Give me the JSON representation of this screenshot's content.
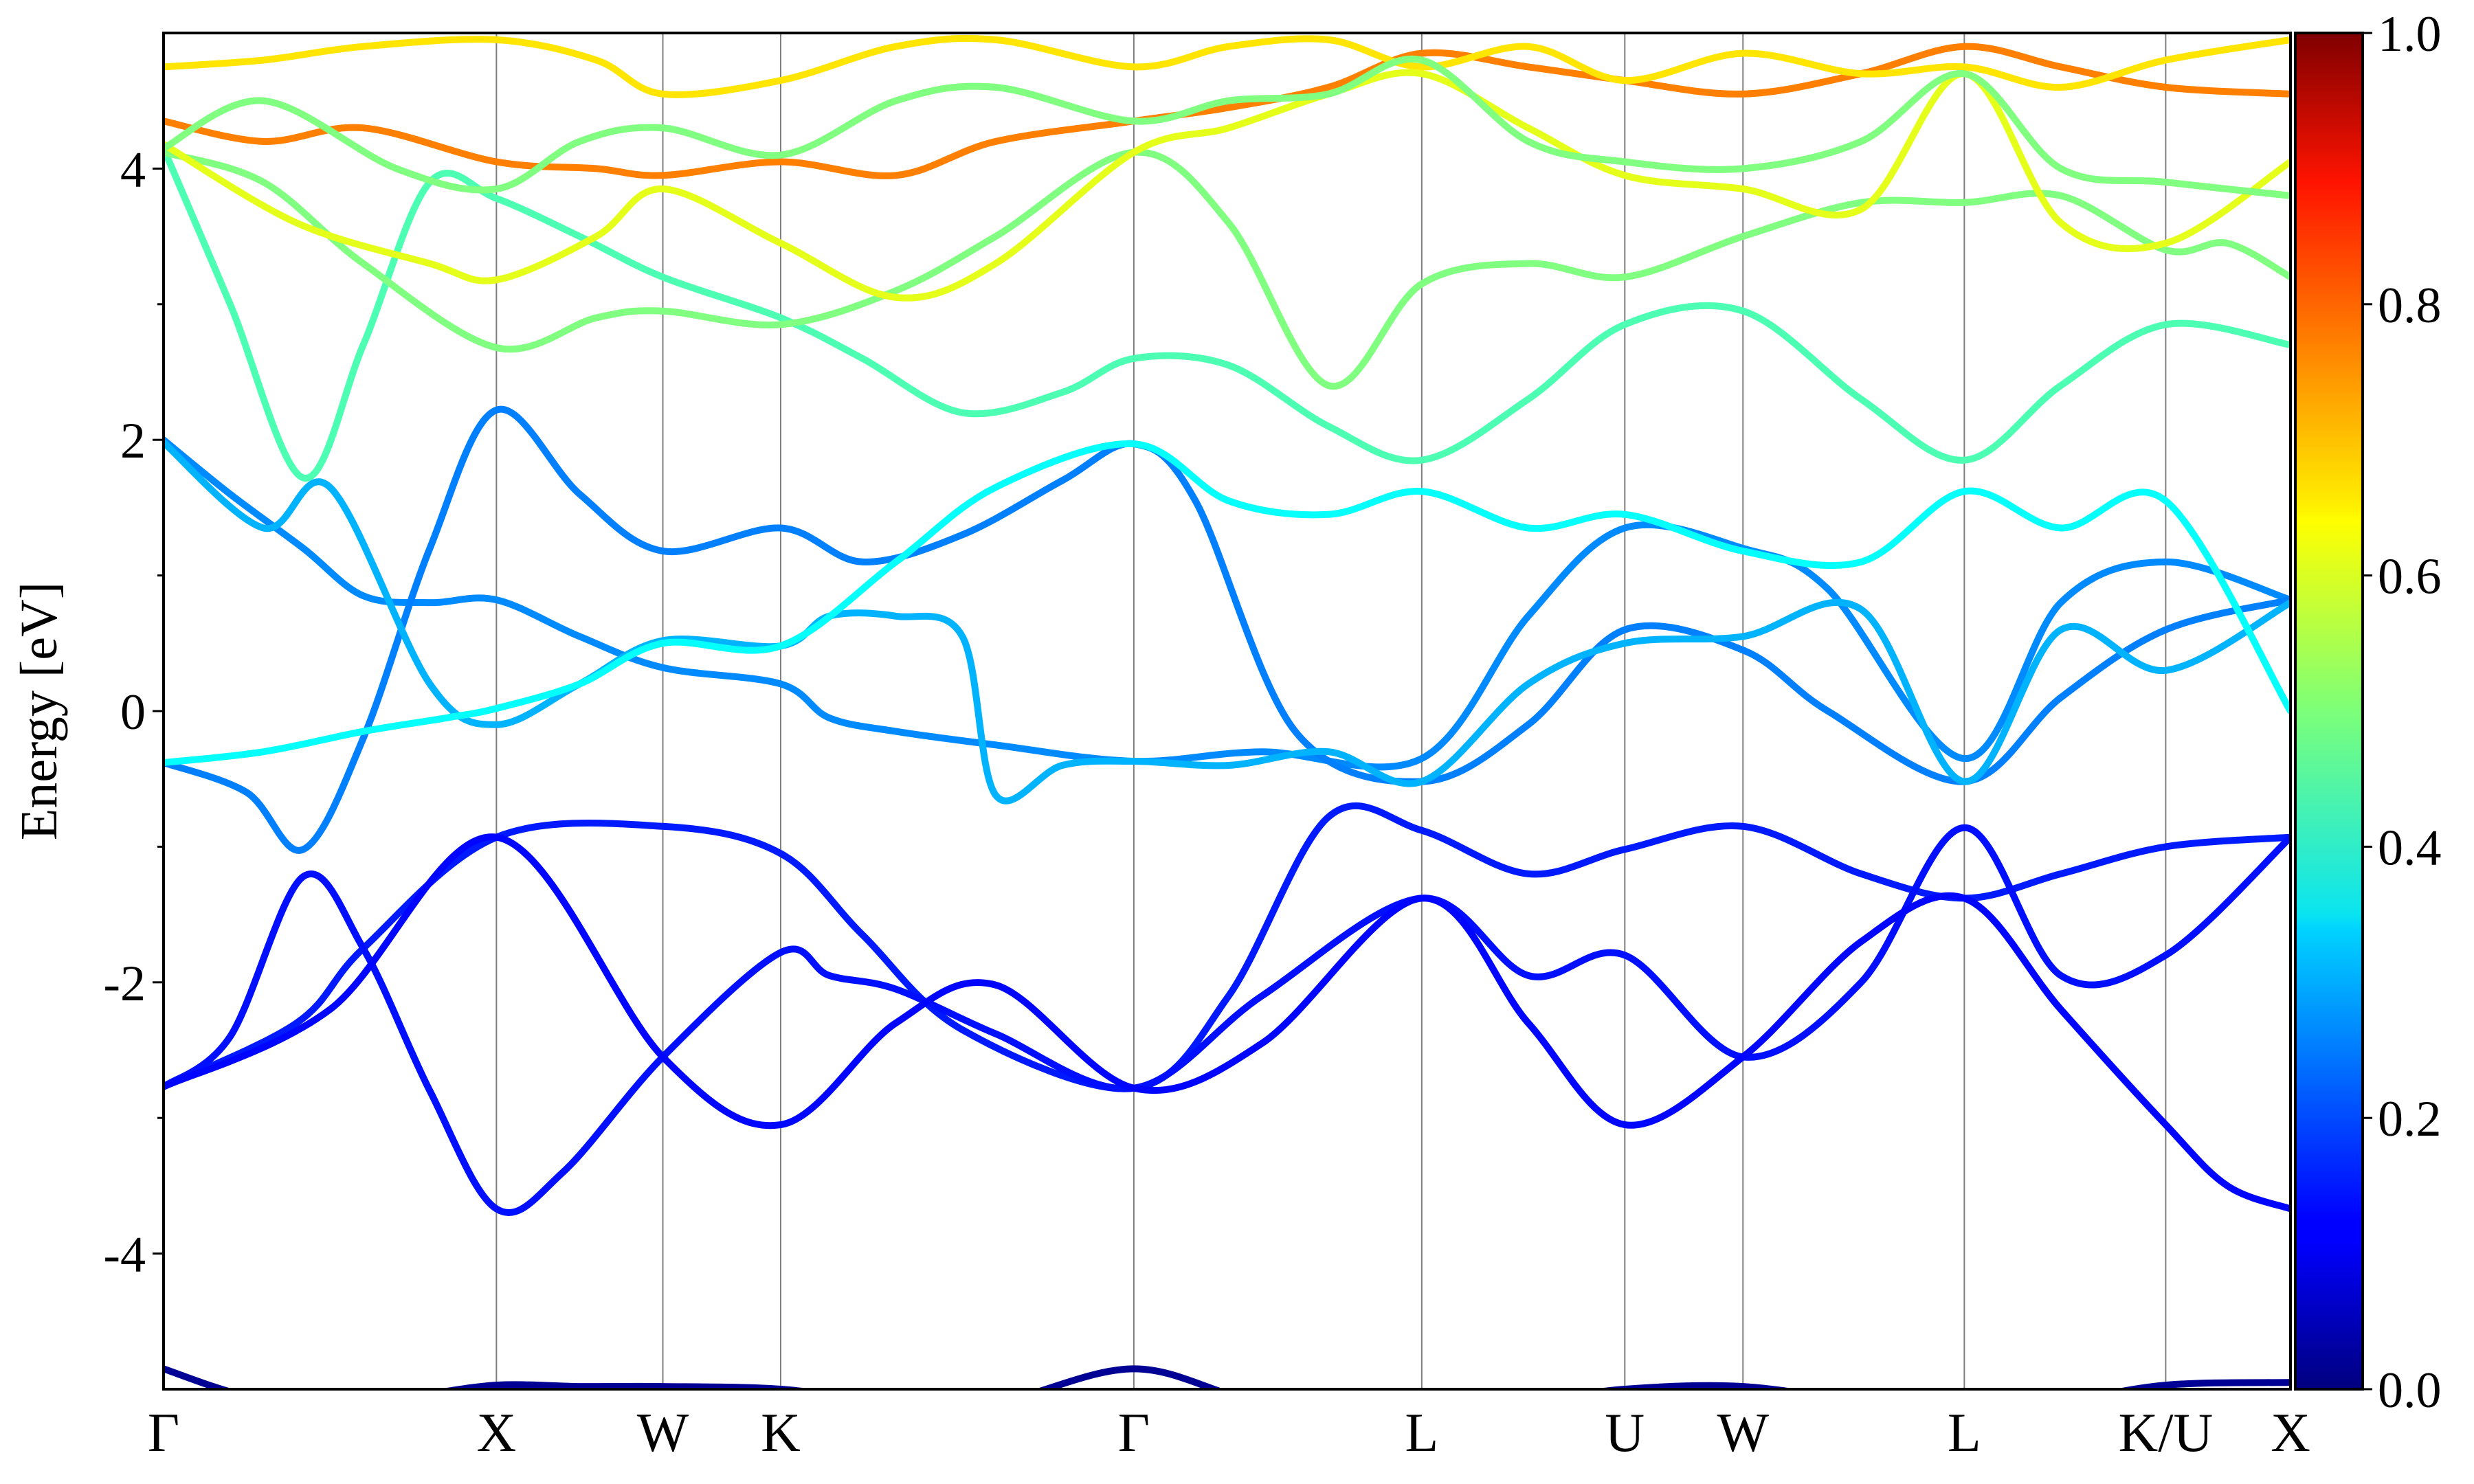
{
  "chart_data": {
    "type": "line",
    "title": "",
    "xlabel": "",
    "ylabel": "Energy [eV]",
    "ylim": [
      -5,
      5
    ],
    "yticks": [
      "-4",
      "-2",
      "0",
      "2",
      "4"
    ],
    "ytick_values": [
      -4,
      -2,
      0,
      2,
      4
    ],
    "kpath": {
      "labels": [
        "Γ",
        "X",
        "W",
        "K",
        "Γ",
        "L",
        "U",
        "W",
        "L",
        "K/U",
        "X"
      ],
      "positions": [
        0.0,
        1.0,
        1.5,
        1.854,
        2.915,
        3.78,
        4.39,
        4.745,
        5.41,
        6.015,
        6.39
      ]
    },
    "grid": false,
    "colorbar": {
      "colormap": "jet",
      "range": [
        0.0,
        1.0
      ],
      "ticks": [
        "0.0",
        "0.2",
        "0.4",
        "0.6",
        "0.8",
        "1.0"
      ],
      "tick_values": [
        0.0,
        0.2,
        0.4,
        0.6,
        0.8,
        1.0
      ]
    },
    "series": [
      {
        "x": [
          0,
          0.25,
          0.5,
          0.75,
          1.0,
          1.25,
          1.5,
          1.854,
          2.2,
          2.5,
          2.915,
          3.3,
          3.78,
          4.1,
          4.39,
          4.745,
          5.1,
          5.41,
          5.7,
          6.015,
          6.39
        ],
        "y": [
          -4.85,
          -5.05,
          -5.1,
          -5.05,
          -4.97,
          -4.98,
          -4.98,
          -5.0,
          -5.1,
          -5.1,
          -4.85,
          -5.1,
          -5.2,
          -5.1,
          -5.0,
          -4.98,
          -5.1,
          -5.2,
          -5.1,
          -4.97,
          -4.95
        ],
        "w": 0.02
      },
      {
        "x": [
          0,
          0.4,
          0.6,
          1.0,
          1.5,
          1.854,
          2.1,
          2.4,
          2.915,
          3.2,
          3.5,
          3.78,
          4.1,
          4.39,
          4.745,
          5.1,
          5.41,
          5.7,
          6.015,
          6.39
        ],
        "y": [
          -2.77,
          -2.3,
          -1.75,
          -0.93,
          -0.85,
          -1.05,
          -1.65,
          -2.35,
          -2.78,
          -2.1,
          -0.78,
          -0.88,
          -1.2,
          -1.02,
          -0.85,
          -1.2,
          -1.38,
          -1.2,
          -1.0,
          -0.93
        ],
        "w": 0.15
      },
      {
        "x": [
          0,
          0.2,
          0.42,
          0.6,
          0.8,
          1.0,
          1.2,
          1.5,
          1.854,
          2.0,
          2.2,
          2.5,
          2.915,
          3.3,
          3.78,
          4.1,
          4.39,
          4.745,
          5.1,
          5.41,
          5.7,
          6.015,
          6.39
        ],
        "y": [
          -2.77,
          -2.4,
          -1.22,
          -1.75,
          -2.8,
          -3.67,
          -3.4,
          -2.55,
          -1.78,
          -1.95,
          -2.05,
          -2.38,
          -2.78,
          -2.1,
          -1.38,
          -1.95,
          -1.8,
          -2.55,
          -2.0,
          -0.86,
          -1.95,
          -1.8,
          -0.93
        ],
        "w": 0.14
      },
      {
        "x": [
          0,
          0.5,
          1.0,
          1.5,
          1.854,
          2.2,
          2.5,
          2.915,
          3.3,
          3.78,
          4.1,
          4.39,
          4.745,
          5.1,
          5.41,
          5.7,
          6.015,
          6.2,
          6.39
        ],
        "y": [
          -2.77,
          -2.2,
          -0.93,
          -2.55,
          -3.05,
          -2.3,
          -2.02,
          -2.78,
          -2.45,
          -1.38,
          -2.3,
          -3.05,
          -2.55,
          -1.7,
          -1.38,
          -2.2,
          -3.05,
          -3.5,
          -3.67
        ],
        "w": 0.13
      },
      {
        "x": [
          0,
          0.2,
          0.42,
          0.6,
          0.8,
          1.0,
          1.25,
          1.5,
          1.854,
          2.0,
          2.2,
          2.5,
          2.915,
          3.3,
          3.78,
          4.1,
          4.39,
          4.745,
          5.0,
          5.41,
          5.7,
          6.015,
          6.39
        ],
        "y": [
          2.0,
          1.6,
          1.2,
          0.85,
          0.8,
          0.82,
          0.55,
          0.32,
          0.2,
          -0.05,
          -0.15,
          -0.25,
          -0.37,
          -0.3,
          -0.35,
          0.7,
          1.35,
          1.2,
          0.9,
          -0.35,
          0.8,
          1.1,
          0.82
        ],
        "w": 0.26
      },
      {
        "x": [
          0,
          0.25,
          0.42,
          0.6,
          0.8,
          1.0,
          1.25,
          1.5,
          1.854,
          2.1,
          2.4,
          2.7,
          2.915,
          3.1,
          3.4,
          3.78,
          4.1,
          4.39,
          4.745,
          5.0,
          5.41,
          5.7,
          6.015,
          6.39
        ],
        "y": [
          -0.38,
          -0.6,
          -1.02,
          -0.2,
          1.2,
          2.22,
          1.6,
          1.18,
          1.35,
          1.1,
          1.3,
          1.7,
          1.97,
          1.55,
          -0.15,
          -0.52,
          -0.1,
          0.6,
          0.45,
          0.0,
          -0.52,
          0.1,
          0.6,
          0.82
        ],
        "w": 0.25
      },
      {
        "x": [
          0,
          0.3,
          0.5,
          0.8,
          1.0,
          1.25,
          1.5,
          1.854,
          2.0,
          2.2,
          2.4,
          2.5,
          2.7,
          2.915,
          3.2,
          3.5,
          3.78,
          4.1,
          4.39,
          4.745,
          5.1,
          5.41,
          5.7,
          6.015,
          6.39
        ],
        "y": [
          1.98,
          1.35,
          1.65,
          0.2,
          -0.1,
          0.2,
          0.52,
          0.48,
          0.7,
          0.7,
          0.55,
          -0.62,
          -0.4,
          -0.37,
          -0.4,
          -0.3,
          -0.52,
          0.2,
          0.5,
          0.55,
          0.75,
          -0.52,
          0.6,
          0.3,
          0.8
        ],
        "w": 0.3
      },
      {
        "x": [
          0,
          0.3,
          0.6,
          0.85,
          1.0,
          1.25,
          1.5,
          1.854,
          2.2,
          2.5,
          2.915,
          3.2,
          3.5,
          3.78,
          4.1,
          4.39,
          4.745,
          5.1,
          5.41,
          5.7,
          6.015,
          6.39
        ],
        "y": [
          -0.38,
          -0.3,
          -0.15,
          -0.05,
          0.02,
          0.2,
          0.5,
          0.48,
          1.1,
          1.65,
          1.97,
          1.55,
          1.45,
          1.62,
          1.35,
          1.45,
          1.18,
          1.1,
          1.62,
          1.35,
          1.55,
          0.0
        ],
        "w": 0.38
      },
      {
        "x": [
          0,
          0.2,
          0.42,
          0.6,
          0.8,
          1.0,
          1.25,
          1.5,
          1.854,
          2.1,
          2.4,
          2.7,
          2.915,
          3.2,
          3.5,
          3.78,
          4.1,
          4.39,
          4.745,
          5.1,
          5.41,
          5.7,
          6.015,
          6.39
        ],
        "y": [
          4.15,
          3.0,
          1.72,
          2.7,
          3.9,
          3.78,
          3.5,
          3.2,
          2.9,
          2.6,
          2.2,
          2.35,
          2.6,
          2.55,
          2.1,
          1.85,
          2.3,
          2.85,
          2.95,
          2.3,
          1.85,
          2.4,
          2.85,
          2.7
        ],
        "w": 0.45
      },
      {
        "x": [
          0,
          0.3,
          0.6,
          1.0,
          1.3,
          1.5,
          1.854,
          2.2,
          2.5,
          2.915,
          3.2,
          3.5,
          3.78,
          4.1,
          4.39,
          4.745,
          5.1,
          5.41,
          5.7,
          6.015,
          6.2,
          6.39
        ],
        "y": [
          4.12,
          3.9,
          3.3,
          2.68,
          2.9,
          2.95,
          2.85,
          3.1,
          3.5,
          4.12,
          3.6,
          2.4,
          3.15,
          3.3,
          3.2,
          3.5,
          3.75,
          3.75,
          3.8,
          3.4,
          3.45,
          3.2
        ],
        "w": 0.5
      },
      {
        "x": [
          0,
          0.3,
          0.6,
          1.0,
          1.3,
          1.5,
          1.854,
          2.2,
          2.5,
          2.915,
          3.2,
          3.5,
          3.78,
          4.1,
          4.39,
          4.745,
          5.1,
          5.41,
          5.7,
          6.015,
          6.39
        ],
        "y": [
          4.35,
          4.2,
          4.3,
          4.05,
          4.0,
          3.95,
          4.05,
          3.95,
          4.2,
          4.35,
          4.45,
          4.6,
          4.85,
          4.75,
          4.65,
          4.55,
          4.7,
          4.9,
          4.75,
          4.6,
          4.55
        ],
        "w": 0.75
      },
      {
        "x": [
          0,
          0.3,
          0.6,
          1.0,
          1.3,
          1.5,
          1.854,
          2.2,
          2.5,
          2.915,
          3.2,
          3.5,
          3.78,
          4.1,
          4.39,
          4.745,
          5.1,
          5.41,
          5.7,
          6.015,
          6.39
        ],
        "y": [
          4.75,
          4.8,
          4.9,
          4.95,
          4.8,
          4.55,
          4.65,
          4.9,
          4.95,
          4.75,
          4.9,
          4.95,
          4.75,
          4.9,
          4.65,
          4.85,
          4.7,
          4.75,
          4.6,
          4.8,
          4.95
        ],
        "w": 0.65
      },
      {
        "x": [
          0,
          0.4,
          0.8,
          1.0,
          1.3,
          1.5,
          1.854,
          2.2,
          2.5,
          2.915,
          3.2,
          3.5,
          3.78,
          4.1,
          4.39,
          4.745,
          5.1,
          5.41,
          5.7,
          6.015,
          6.39
        ],
        "y": [
          4.18,
          3.6,
          3.3,
          3.18,
          3.5,
          3.85,
          3.45,
          3.05,
          3.3,
          4.12,
          4.3,
          4.55,
          4.7,
          4.3,
          3.95,
          3.85,
          3.7,
          4.7,
          3.6,
          3.45,
          4.05
        ],
        "w": 0.6
      },
      {
        "x": [
          0,
          0.3,
          0.7,
          1.0,
          1.25,
          1.5,
          1.854,
          2.2,
          2.5,
          2.915,
          3.2,
          3.5,
          3.78,
          4.1,
          4.39,
          4.745,
          5.1,
          5.41,
          5.7,
          6.015,
          6.39
        ],
        "y": [
          4.15,
          4.5,
          4.0,
          3.85,
          4.2,
          4.3,
          4.1,
          4.5,
          4.6,
          4.35,
          4.5,
          4.55,
          4.8,
          4.2,
          4.05,
          4.0,
          4.2,
          4.7,
          4.0,
          3.9,
          3.8
        ],
        "w": 0.5
      }
    ]
  }
}
